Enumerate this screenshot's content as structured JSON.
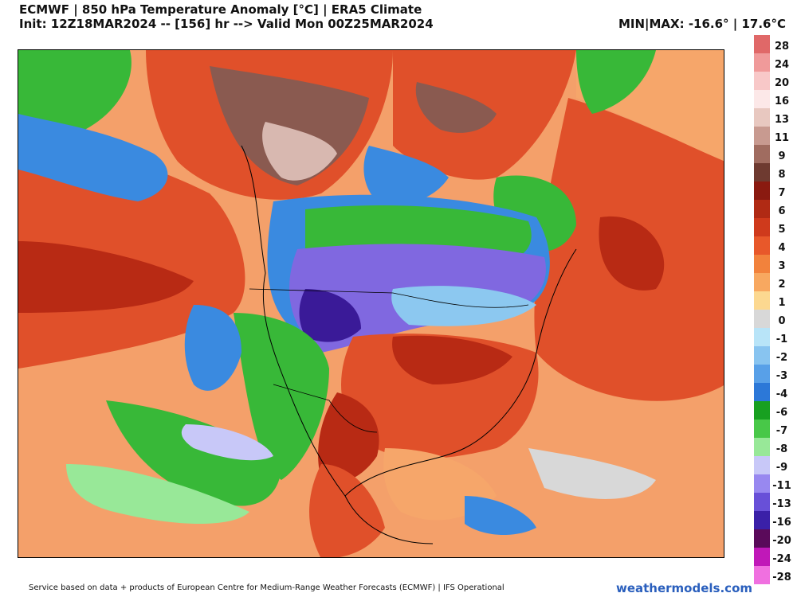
{
  "header": {
    "title": "ECMWF | 850 hPa Temperature Anomaly [°C] | ERA5 Climate",
    "subtitle": "Init: 12Z18MAR2024 -- [156] hr --> Valid Mon 00Z25MAR2024",
    "minmax": "MIN|MAX: -16.6° | 17.6°C"
  },
  "legend": {
    "labels": [
      "28",
      "24",
      "20",
      "16",
      "13",
      "11",
      "9",
      "8",
      "7",
      "6",
      "5",
      "4",
      "3",
      "2",
      "1",
      "0",
      "-1",
      "-2",
      "-3",
      "-4",
      "-6",
      "-7",
      "-8",
      "-9",
      "-11",
      "-13",
      "-16",
      "-20",
      "-24",
      "-28"
    ],
    "colors": [
      "#e06868",
      "#f09a9a",
      "#f8c8c8",
      "#fce8e8",
      "#e8c8c0",
      "#c89a90",
      "#a06c60",
      "#6e3a30",
      "#8a1a10",
      "#b02a14",
      "#cf3a1c",
      "#e8582a",
      "#f2823c",
      "#f8a860",
      "#fcd890",
      "#d8d8d8",
      "#b8e4f8",
      "#88c4f0",
      "#58a0e8",
      "#2c78d8",
      "#18a020",
      "#48c848",
      "#98e898",
      "#c8c8f8",
      "#9888f0",
      "#6850d8",
      "#3a20a8",
      "#5a0a5a",
      "#c018b8",
      "#f070e0"
    ]
  },
  "map": {
    "region": "North America",
    "colors": {
      "warm_strong": "#b82a14",
      "warm": "#e0502a",
      "warm_light": "#f6a66a",
      "very_warm_brown": "#8a5a50",
      "pale_brown": "#d8b8b0",
      "neutral": "#d8d8d8",
      "cool_blue": "#3a8ae0",
      "light_blue": "#8cc8f0",
      "green": "#38b838",
      "light_green": "#98e898",
      "purple": "#8068e0",
      "deep_purple": "#3a1a98"
    }
  },
  "footer": {
    "credit": "Service based on data + products of European Centre for Medium-Range Weather Forecasts (ECMWF) | IFS Operational",
    "brand": "weathermodels.com"
  }
}
